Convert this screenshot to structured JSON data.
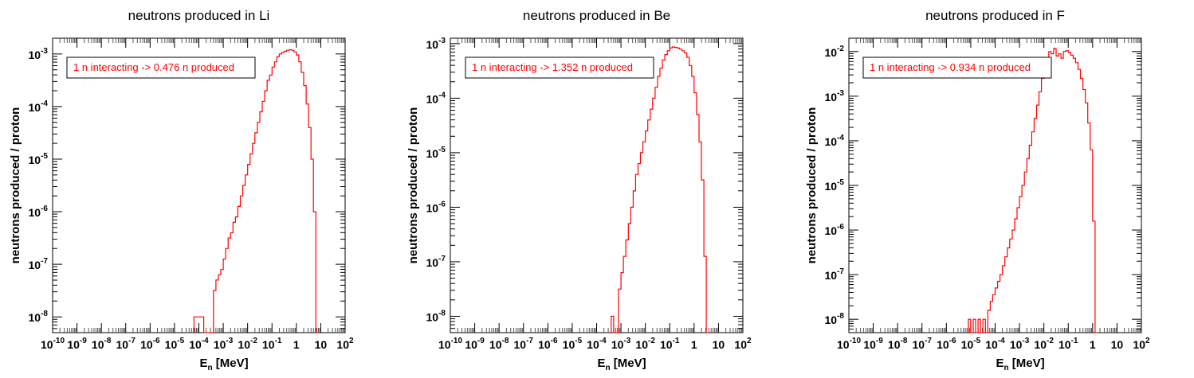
{
  "chart_data": [
    {
      "type": "step",
      "title": "neutrons produced in Li",
      "xlabel": "E",
      "xlabel_sub": "n",
      "xlabel_unit": " [MeV]",
      "ylabel": "neutrons produced / proton",
      "xscale": "log",
      "yscale": "log",
      "xlim": [
        1e-10,
        100
      ],
      "ylim_exp": [
        -8.3,
        -2.7
      ],
      "yticks_exp": [
        -8,
        -7,
        -6,
        -5,
        -4,
        -3
      ],
      "annotation": "1 n interacting -> 0.476 n produced",
      "color": "#ff0000",
      "series": [
        {
          "x_log_start": -4.2,
          "x_log_step": 0.1,
          "y_exp": [
            -8,
            -8,
            -8,
            -8,
            -8.3,
            -8.3,
            -8.3,
            -8.3,
            -7.5,
            -7.3,
            -7.2,
            -7.1,
            -6.9,
            -6.7,
            -6.5,
            -6.4,
            -6.2,
            -6.1,
            -5.9,
            -5.7,
            -5.5,
            -5.3,
            -5.1,
            -4.9,
            -4.7,
            -4.5,
            -4.3,
            -4.1,
            -3.9,
            -3.7,
            -3.5,
            -3.4,
            -3.25,
            -3.15,
            -3.05,
            -3,
            -2.97,
            -2.95,
            -2.93,
            -2.92,
            -2.93,
            -2.96,
            -3.02,
            -3.15,
            -3.35,
            -3.6,
            -3.95,
            -4.4,
            -5,
            -6,
            -8.3
          ]
        }
      ]
    },
    {
      "type": "step",
      "title": "neutrons produced in Be",
      "xlabel": "E",
      "xlabel_sub": "n",
      "xlabel_unit": " [MeV]",
      "ylabel": "neutrons produced / proton",
      "xscale": "log",
      "yscale": "log",
      "xlim": [
        1e-10,
        100
      ],
      "ylim_exp": [
        -8.3,
        -2.9
      ],
      "yticks_exp": [
        -8,
        -7,
        -6,
        -5,
        -4,
        -3
      ],
      "annotation": "1 n interacting -> 1.352 n produced",
      "color": "#ff0000",
      "series": [
        {
          "x_log_start": -3.4,
          "x_log_step": 0.1,
          "y_exp": [
            -8,
            -8.3,
            -8.3,
            -7.5,
            -7.2,
            -6.9,
            -6.6,
            -6.3,
            -6,
            -5.7,
            -5.4,
            -5.2,
            -5,
            -4.8,
            -4.6,
            -4.4,
            -4.2,
            -4,
            -3.8,
            -3.6,
            -3.45,
            -3.3,
            -3.2,
            -3.13,
            -3.08,
            -3.06,
            -3.07,
            -3.08,
            -3.1,
            -3.13,
            -3.17,
            -3.25,
            -3.4,
            -3.6,
            -3.9,
            -4.3,
            -4.8,
            -5.5,
            -6.9,
            -8.3
          ]
        }
      ]
    },
    {
      "type": "step",
      "title": "neutrons produced in F",
      "xlabel": "E",
      "xlabel_sub": "n",
      "xlabel_unit": " [MeV]",
      "ylabel": "neutrons produced / proton",
      "xscale": "log",
      "yscale": "log",
      "xlim": [
        1e-10,
        100
      ],
      "ylim_exp": [
        -8.3,
        -1.7
      ],
      "yticks_exp": [
        -8,
        -7,
        -6,
        -5,
        -4,
        -3,
        -2
      ],
      "annotation": "1 n interacting -> 0.934 n produced",
      "color": "#ff0000",
      "series": [
        {
          "x_log_start": -5.1,
          "x_log_step": 0.1,
          "y_exp": [
            -8,
            -8.3,
            -8,
            -8.3,
            -8,
            -8.3,
            -8,
            -8.3,
            -7.8,
            -7.6,
            -7.45,
            -7.3,
            -7.15,
            -7,
            -6.8,
            -6.6,
            -6.4,
            -6.2,
            -6,
            -5.75,
            -5.5,
            -5.25,
            -5,
            -4.7,
            -4.4,
            -4.1,
            -3.8,
            -3.5,
            -3.2,
            -2.9,
            -2.6,
            -2.35,
            -2.15,
            -2.0,
            -2.05,
            -1.93,
            -2.1,
            -2.05,
            -2.15,
            -2.0,
            -1.98,
            -2.02,
            -2.08,
            -2.15,
            -2.25,
            -2.4,
            -2.6,
            -2.85,
            -3.15,
            -3.6,
            -4.2,
            -5.8,
            -8.3
          ]
        }
      ]
    }
  ]
}
